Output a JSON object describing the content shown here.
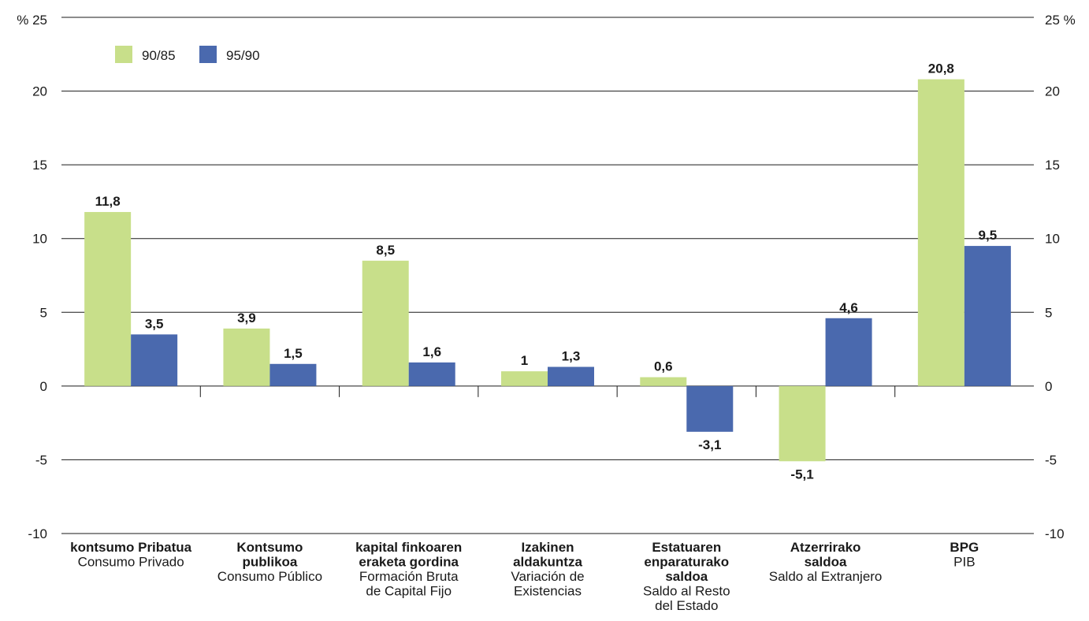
{
  "chart_data": {
    "type": "bar",
    "title": "",
    "xlabel": "",
    "ylabel": "",
    "y_unit_left": "% 25",
    "y_unit_right": "25 %",
    "ylim": [
      -10,
      25
    ],
    "yticks": [
      -10,
      -5,
      0,
      5,
      10,
      15,
      20
    ],
    "ytick_labels": [
      "-10",
      "-5",
      "0",
      "5",
      "10",
      "15",
      "20"
    ],
    "grid": true,
    "legend_position": "top-left",
    "categories": [
      {
        "bold": [
          "kontsumo Pribatua"
        ],
        "normal": [
          "Consumo Privado"
        ]
      },
      {
        "bold": [
          "Kontsumo",
          "publikoa"
        ],
        "normal": [
          "Consumo Público"
        ]
      },
      {
        "bold": [
          "kapital finkoaren",
          "eraketa gordina"
        ],
        "normal": [
          "Formación Bruta",
          "de Capital Fijo"
        ]
      },
      {
        "bold": [
          "Izakinen",
          "aldakuntza"
        ],
        "normal": [
          "Variación de",
          "Existencias"
        ]
      },
      {
        "bold": [
          "Estatuaren",
          "enparaturako",
          "saldoa"
        ],
        "normal": [
          "Saldo al Resto",
          "del Estado"
        ]
      },
      {
        "bold": [
          "Atzerrirako",
          "saldoa"
        ],
        "normal": [
          "Saldo al Extranjero"
        ]
      },
      {
        "bold": [
          "BPG"
        ],
        "normal": [
          "PIB"
        ]
      }
    ],
    "series": [
      {
        "name": "90/85",
        "color": "#c8df8a",
        "values": [
          11.8,
          3.9,
          8.5,
          1,
          0.6,
          -5.1,
          20.8
        ],
        "labels": [
          "11,8",
          "3,9",
          "8,5",
          "1",
          "0,6",
          "-5,1",
          "20,8"
        ]
      },
      {
        "name": "95/90",
        "color": "#4a69ae",
        "values": [
          3.5,
          1.5,
          1.6,
          1.3,
          -3.1,
          4.6,
          9.5
        ],
        "labels": [
          "3,5",
          "1,5",
          "1,6",
          "1,3",
          "-3,1",
          "4,6",
          "9,5"
        ]
      }
    ]
  }
}
